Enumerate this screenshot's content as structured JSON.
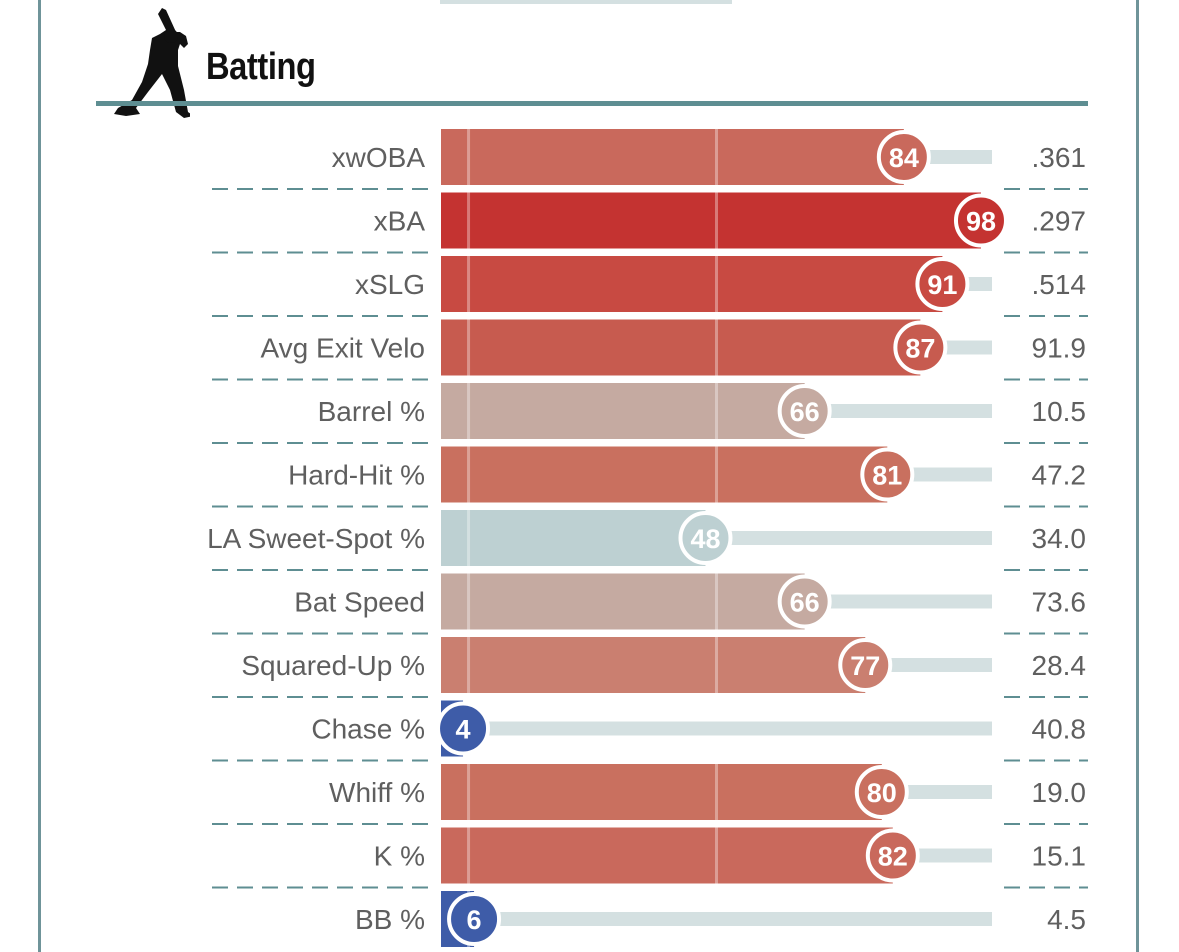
{
  "section": {
    "title": "Batting",
    "icon": "batter-silhouette-icon"
  },
  "colors": {
    "frame": "#6f9499",
    "track": "#d4e0e1",
    "divider": "#5e8e92",
    "label_text": "#5f5f5f"
  },
  "chart_data": {
    "type": "bar",
    "orientation": "horizontal",
    "title": "Batting",
    "xlim": [
      0,
      100
    ],
    "grid": false,
    "rows": [
      {
        "label": "xwOBA",
        "percentile": 84,
        "value": ".361",
        "color": "#c9695c"
      },
      {
        "label": "xBA",
        "percentile": 98,
        "value": ".297",
        "color": "#c43331"
      },
      {
        "label": "xSLG",
        "percentile": 91,
        "value": ".514",
        "color": "#c84a42"
      },
      {
        "label": "Avg Exit Velo",
        "percentile": 87,
        "value": "91.9",
        "color": "#c75b4f"
      },
      {
        "label": "Barrel %",
        "percentile": 66,
        "value": "10.5",
        "color": "#c5aaa1"
      },
      {
        "label": "Hard-Hit %",
        "percentile": 81,
        "value": "47.2",
        "color": "#c9705f"
      },
      {
        "label": "LA Sweet-Spot %",
        "percentile": 48,
        "value": "34.0",
        "color": "#bdd0d2"
      },
      {
        "label": "Bat Speed",
        "percentile": 66,
        "value": "73.6",
        "color": "#c5aaa1"
      },
      {
        "label": "Squared-Up %",
        "percentile": 77,
        "value": "28.4",
        "color": "#ca7f70"
      },
      {
        "label": "Chase %",
        "percentile": 4,
        "value": "40.8",
        "color": "#3e5ca8"
      },
      {
        "label": "Whiff %",
        "percentile": 80,
        "value": "19.0",
        "color": "#c9705f"
      },
      {
        "label": "K %",
        "percentile": 82,
        "value": "15.1",
        "color": "#c9695c"
      },
      {
        "label": "BB %",
        "percentile": 6,
        "value": "4.5",
        "color": "#3e5ca8"
      }
    ]
  }
}
